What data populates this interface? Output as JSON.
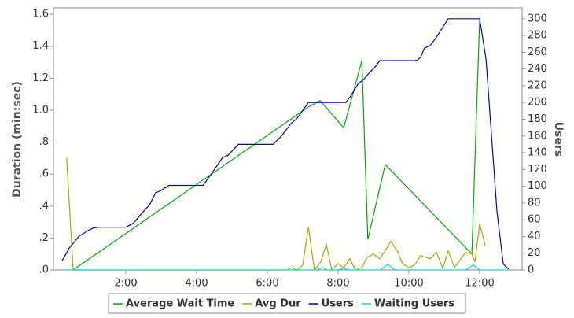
{
  "chart_data": {
    "type": "line",
    "y_label": "Duration (min:sec)",
    "y2_label": "Users",
    "xlim": [
      0,
      13.2
    ],
    "xticks": [
      {
        "value": 2,
        "label": "2:00"
      },
      {
        "value": 4,
        "label": "4:00"
      },
      {
        "value": 6,
        "label": "6:00"
      },
      {
        "value": 8,
        "label": "8:00"
      },
      {
        "value": 10,
        "label": "10:00"
      },
      {
        "value": 12,
        "label": "12:00"
      }
    ],
    "ylim": [
      0,
      1.64
    ],
    "yticks": [
      {
        "value": 0,
        "label": ".0"
      },
      {
        "value": 0.2,
        "label": ".2"
      },
      {
        "value": 0.4,
        "label": ".4"
      },
      {
        "value": 0.6,
        "label": ".6"
      },
      {
        "value": 0.8,
        "label": ".8"
      },
      {
        "value": 1,
        "label": "1.0"
      },
      1.2,
      1.4,
      1.6
    ],
    "y2lim": [
      0,
      313
    ],
    "y2ticks": [
      0,
      20,
      40,
      60,
      80,
      100,
      120,
      140,
      160,
      180,
      200,
      220,
      240,
      260,
      280,
      300
    ],
    "legend": "bottom",
    "series": [
      {
        "name": "Average Wait Time",
        "color": "#00aa00",
        "x": [
          0.51,
          7.16,
          7.49,
          8.16,
          8.67,
          8.84,
          9.33,
          11.78,
          12.0
        ],
        "values": [
          0,
          1.02,
          1.06,
          0.89,
          1.31,
          0.19,
          0.66,
          0.1,
          1.57
        ]
      },
      {
        "name": "Avg Dur",
        "color": "#aaaa00",
        "x": [
          0.33,
          0.51,
          6.56,
          6.67,
          6.84,
          7.0,
          7.16,
          7.33,
          7.51,
          7.67,
          7.82,
          8.0,
          8.16,
          8.33,
          8.49,
          8.67,
          8.82,
          9.0,
          9.18,
          9.33,
          9.49,
          9.67,
          9.82,
          10.0,
          10.16,
          10.33,
          10.6,
          10.78,
          10.96,
          11.11,
          11.29,
          11.6,
          11.78,
          11.87,
          12.0,
          12.16
        ],
        "values": [
          0.7,
          0,
          0,
          0.015,
          0,
          0.03,
          0.27,
          0,
          0.05,
          0.16,
          0,
          0.04,
          0.015,
          0.07,
          0,
          0.015,
          0.08,
          0.1,
          0.07,
          0.12,
          0.18,
          0.12,
          0.04,
          0.015,
          0.03,
          0.09,
          0.07,
          0.11,
          0.01,
          0.12,
          0.015,
          0.11,
          0.1,
          0.05,
          0.29,
          0.15
        ]
      },
      {
        "name": "Users",
        "color": "#0000cc",
        "axis": "y2",
        "x": [
          0.2,
          0.4,
          0.67,
          0.93,
          1.07,
          1.22,
          2.0,
          2.22,
          2.44,
          2.67,
          2.84,
          3.0,
          3.22,
          4.18,
          4.44,
          4.73,
          4.89,
          5.18,
          6.16,
          6.4,
          6.67,
          6.84,
          7.16,
          8.22,
          8.36,
          8.56,
          8.73,
          8.89,
          9.04,
          9.18,
          10.22,
          10.33,
          10.44,
          10.6,
          10.78,
          11.11,
          12.0,
          12.18,
          12.33,
          12.49,
          12.67,
          12.82
        ],
        "values": [
          11,
          26,
          40,
          47,
          50,
          51,
          51,
          56,
          67,
          78,
          92,
          95,
          101,
          101,
          116,
          134,
          137,
          150,
          150,
          160,
          175,
          181,
          200,
          200,
          208,
          222,
          228,
          236,
          242,
          250,
          250,
          254,
          265,
          268,
          278,
          300,
          300,
          252,
          163,
          69,
          7,
          1
        ]
      },
      {
        "name": "Waiting Users",
        "color": "#00dddd",
        "axis": "y2",
        "x": [
          0.2,
          7.4,
          7.56,
          7.7,
          8.0,
          8.16,
          8.3,
          9.2,
          9.4,
          9.6,
          11.6,
          11.82,
          12.0,
          12.82
        ],
        "values": [
          0,
          0,
          3,
          0,
          0,
          2,
          0,
          0,
          7,
          0,
          0,
          6,
          0,
          0
        ]
      }
    ]
  }
}
